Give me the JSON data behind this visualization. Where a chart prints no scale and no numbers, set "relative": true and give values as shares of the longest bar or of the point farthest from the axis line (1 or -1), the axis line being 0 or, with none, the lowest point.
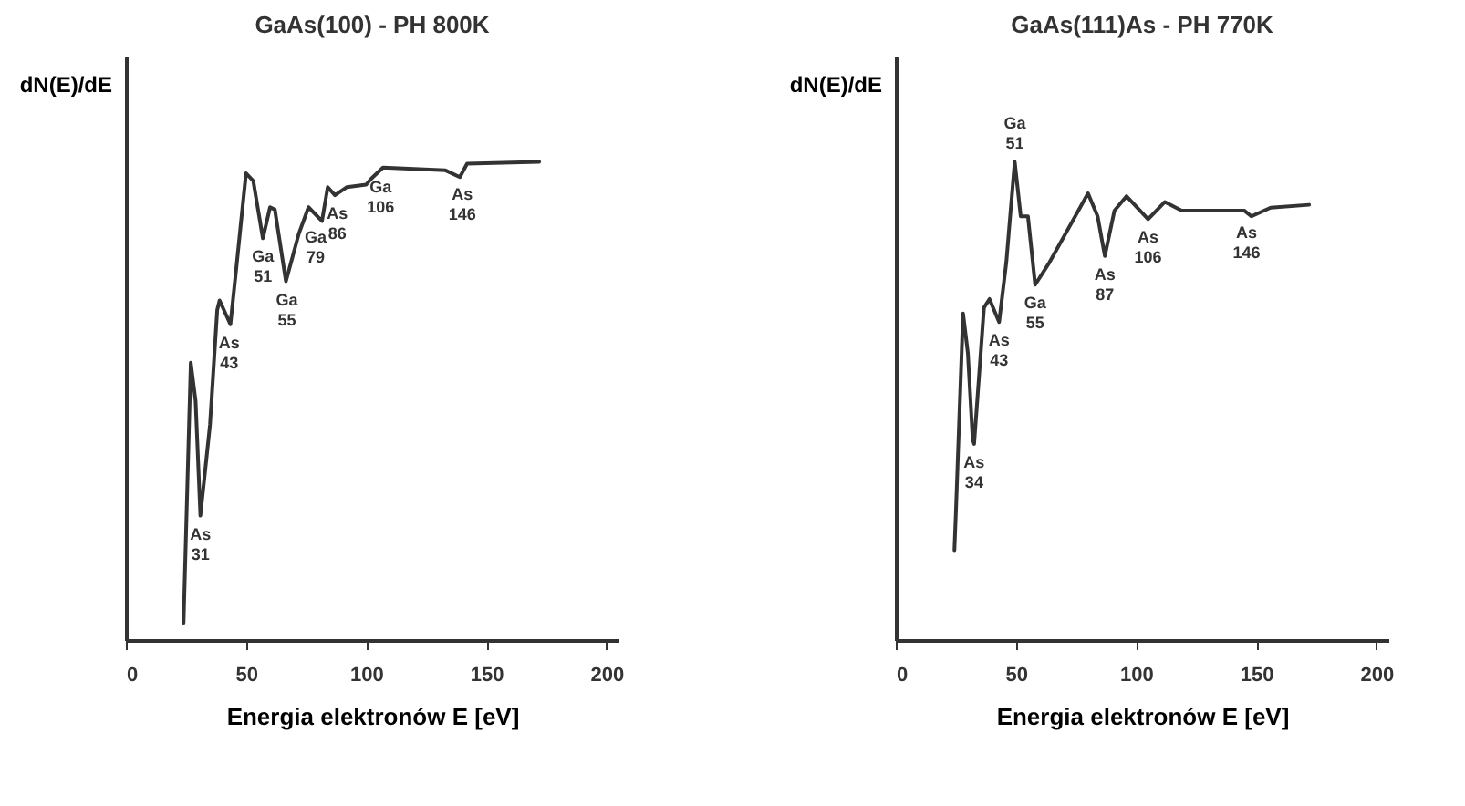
{
  "chart_data": [
    {
      "type": "line",
      "title": "GaAs(100) - PH 800K",
      "xlabel": "Energia elektronów  E [eV]",
      "ylabel": "dN(E)/dE",
      "relative": true,
      "xlim": [
        0,
        205
      ],
      "xticks": [
        0,
        50,
        100,
        150,
        200
      ],
      "series": [
        {
          "color": "#333333",
          "x": [
            24,
            27,
            29,
            31,
            35,
            38,
            39,
            43.5,
            46,
            50,
            53,
            57,
            60,
            62,
            66.6,
            72,
            76,
            81.6,
            84,
            87,
            92,
            100,
            102,
            107,
            133,
            139,
            142,
            172
          ],
          "values": [
            0.036,
            0.58,
            0.5,
            0.26,
            0.45,
            0.69,
            0.71,
            0.66,
            0.78,
            0.976,
            0.96,
            0.84,
            0.905,
            0.9,
            0.75,
            0.85,
            0.905,
            0.876,
            0.947,
            0.93,
            0.947,
            0.952,
            0.964,
            0.988,
            0.982,
            0.968,
            0.996,
            1.0
          ]
        }
      ],
      "annotations": [
        {
          "text": "As\n31",
          "x": 31,
          "y": 0.26
        },
        {
          "text": "As\n43",
          "x": 43,
          "y": 0.66
        },
        {
          "text": "Ga\n51",
          "x": 57,
          "y": 0.84
        },
        {
          "text": "Ga\n55",
          "x": 67,
          "y": 0.75
        },
        {
          "text": "Ga\n79",
          "x": 79,
          "y": 0.88
        },
        {
          "text": "As\n86",
          "x": 88,
          "y": 0.93
        },
        {
          "text": "Ga\n106",
          "x": 106,
          "y": 0.986
        },
        {
          "text": "As\n146",
          "x": 140,
          "y": 0.97
        }
      ]
    },
    {
      "type": "line",
      "title": "GaAs(111)As - PH 770K",
      "xlabel": "Energia elektronów  E [eV]",
      "ylabel": "dN(E)/dE",
      "relative": true,
      "xlim": [
        0,
        205
      ],
      "xticks": [
        0,
        50,
        100,
        150,
        200
      ],
      "series": [
        {
          "color": "#333333",
          "x": [
            24.4,
            25,
            28,
            30,
            32,
            32.6,
            35,
            36.7,
            39,
            43,
            46,
            49.5,
            52,
            55,
            58,
            64,
            80,
            84,
            87,
            91,
            96,
            105,
            112,
            119,
            145,
            148,
            156,
            172
          ],
          "values": [
            0.188,
            0.265,
            0.683,
            0.6,
            0.42,
            0.41,
            0.576,
            0.695,
            0.713,
            0.665,
            0.79,
            1.0,
            0.886,
            0.886,
            0.743,
            0.79,
            0.934,
            0.886,
            0.803,
            0.898,
            0.928,
            0.88,
            0.916,
            0.898,
            0.898,
            0.886,
            0.904,
            0.91
          ]
        }
      ],
      "annotations": [
        {
          "text": "As\n34",
          "x": 32.6,
          "y": 0.41
        },
        {
          "text": "As\n43",
          "x": 43,
          "y": 0.665
        },
        {
          "text": "Ga\n51",
          "x": 49.5,
          "y": 1.0
        },
        {
          "text": "Ga\n55",
          "x": 58,
          "y": 0.743
        },
        {
          "text": "As\n87",
          "x": 87,
          "y": 0.803
        },
        {
          "text": "As\n106",
          "x": 105,
          "y": 0.88
        },
        {
          "text": "As\n146",
          "x": 146,
          "y": 0.89
        }
      ]
    }
  ]
}
